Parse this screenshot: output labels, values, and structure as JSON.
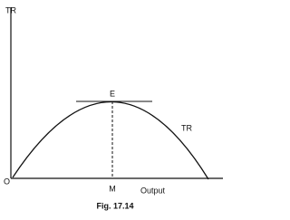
{
  "labels": {
    "y_axis": "TR",
    "point_e": "E",
    "curve": "TR",
    "origin": "O",
    "point_m": "M",
    "x_axis": "Output"
  },
  "caption": "Fig. 17.14"
}
